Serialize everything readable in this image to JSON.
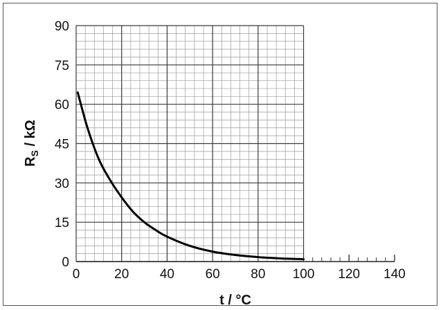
{
  "chart_data": {
    "type": "line",
    "xlabel": "t / °C",
    "ylabel_main": "R",
    "ylabel_sub": "S",
    "ylabel_rest": " / kΩ",
    "xlim": [
      0,
      140
    ],
    "ylim": [
      0,
      90
    ],
    "x_ticks": [
      0,
      20,
      40,
      60,
      80,
      100,
      120,
      140
    ],
    "y_ticks": [
      0,
      15,
      30,
      45,
      60,
      75,
      90
    ],
    "grid": true,
    "series": [
      {
        "x": [
          0.7,
          5,
          10,
          15,
          20,
          25,
          30,
          35,
          40,
          50,
          60,
          70,
          80,
          90,
          100
        ],
        "y": [
          64.5,
          51,
          39,
          31,
          24.5,
          19,
          15,
          12,
          9.5,
          6,
          3.8,
          2.5,
          1.7,
          1.2,
          0.9
        ]
      }
    ]
  }
}
